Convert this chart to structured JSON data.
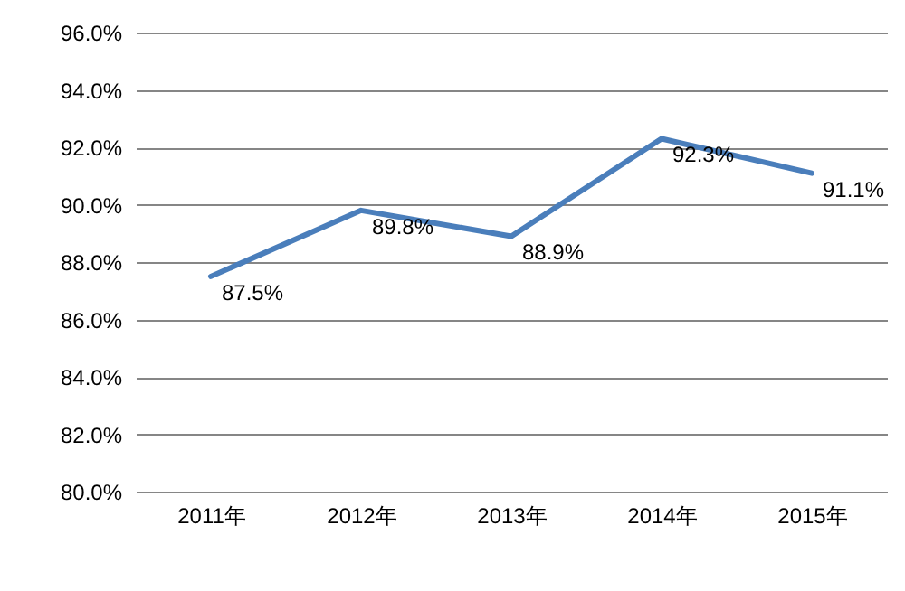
{
  "chart_data": {
    "type": "line",
    "categories": [
      "2011年",
      "2012年",
      "2013年",
      "2014年",
      "2015年"
    ],
    "series": [
      {
        "color": "#4a7ebb",
        "values": [
          87.5,
          89.8,
          88.9,
          92.3,
          91.1
        ],
        "value_labels": [
          "87.5%",
          "89.8%",
          "88.9%",
          "92.3%",
          "91.1%"
        ]
      }
    ],
    "ylim": [
      80,
      96
    ],
    "yticks": [
      {
        "value": 80,
        "label": "80.0%"
      },
      {
        "value": 82,
        "label": "82.0%"
      },
      {
        "value": 84,
        "label": "84.0%"
      },
      {
        "value": 86,
        "label": "86.0%"
      },
      {
        "value": 88,
        "label": "88.0%"
      },
      {
        "value": 90,
        "label": "90.0%"
      },
      {
        "value": 92,
        "label": "92.0%"
      },
      {
        "value": 94,
        "label": "94.0%"
      },
      {
        "value": 96,
        "label": "96.0%"
      }
    ],
    "grid": "y"
  }
}
